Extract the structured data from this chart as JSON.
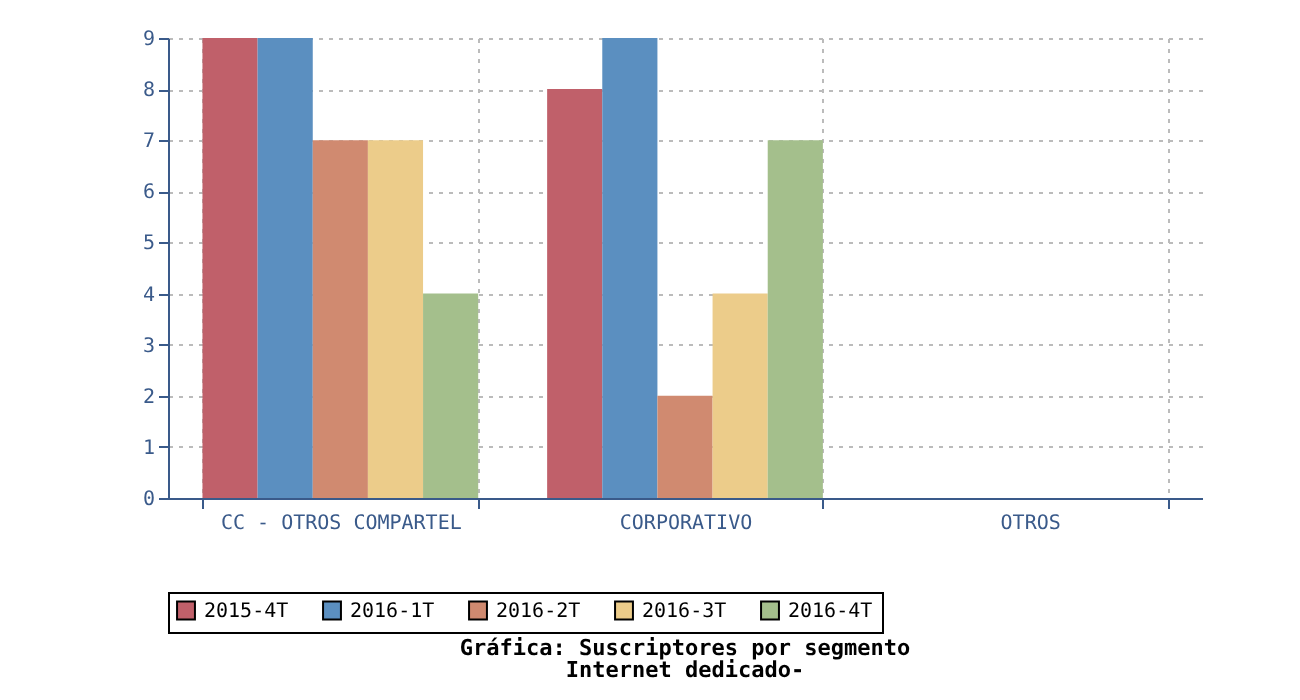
{
  "chart_data": {
    "type": "bar",
    "title": "Gráfica: Suscriptores por segmento",
    "subtitle": "Internet dedicado-",
    "categories": [
      "CC - OTROS COMPARTEL",
      "CORPORATIVO",
      "OTROS"
    ],
    "series": [
      {
        "name": "2015-4T",
        "color": "#c0606a",
        "values": [
          9,
          8,
          0
        ]
      },
      {
        "name": "2016-1T",
        "color": "#5b8fc0",
        "values": [
          9,
          9,
          0
        ]
      },
      {
        "name": "2016-2T",
        "color": "#d08a70",
        "values": [
          7,
          2,
          0
        ]
      },
      {
        "name": "2016-3T",
        "color": "#eccc8a",
        "values": [
          7,
          4,
          0
        ]
      },
      {
        "name": "2016-4T",
        "color": "#a4bf8c",
        "values": [
          4,
          7,
          0
        ]
      }
    ],
    "ylim": [
      0,
      9
    ],
    "yticks": [
      0,
      1,
      2,
      3,
      4,
      5,
      6,
      7,
      8,
      9
    ],
    "grid": true,
    "legend": "bottom"
  }
}
